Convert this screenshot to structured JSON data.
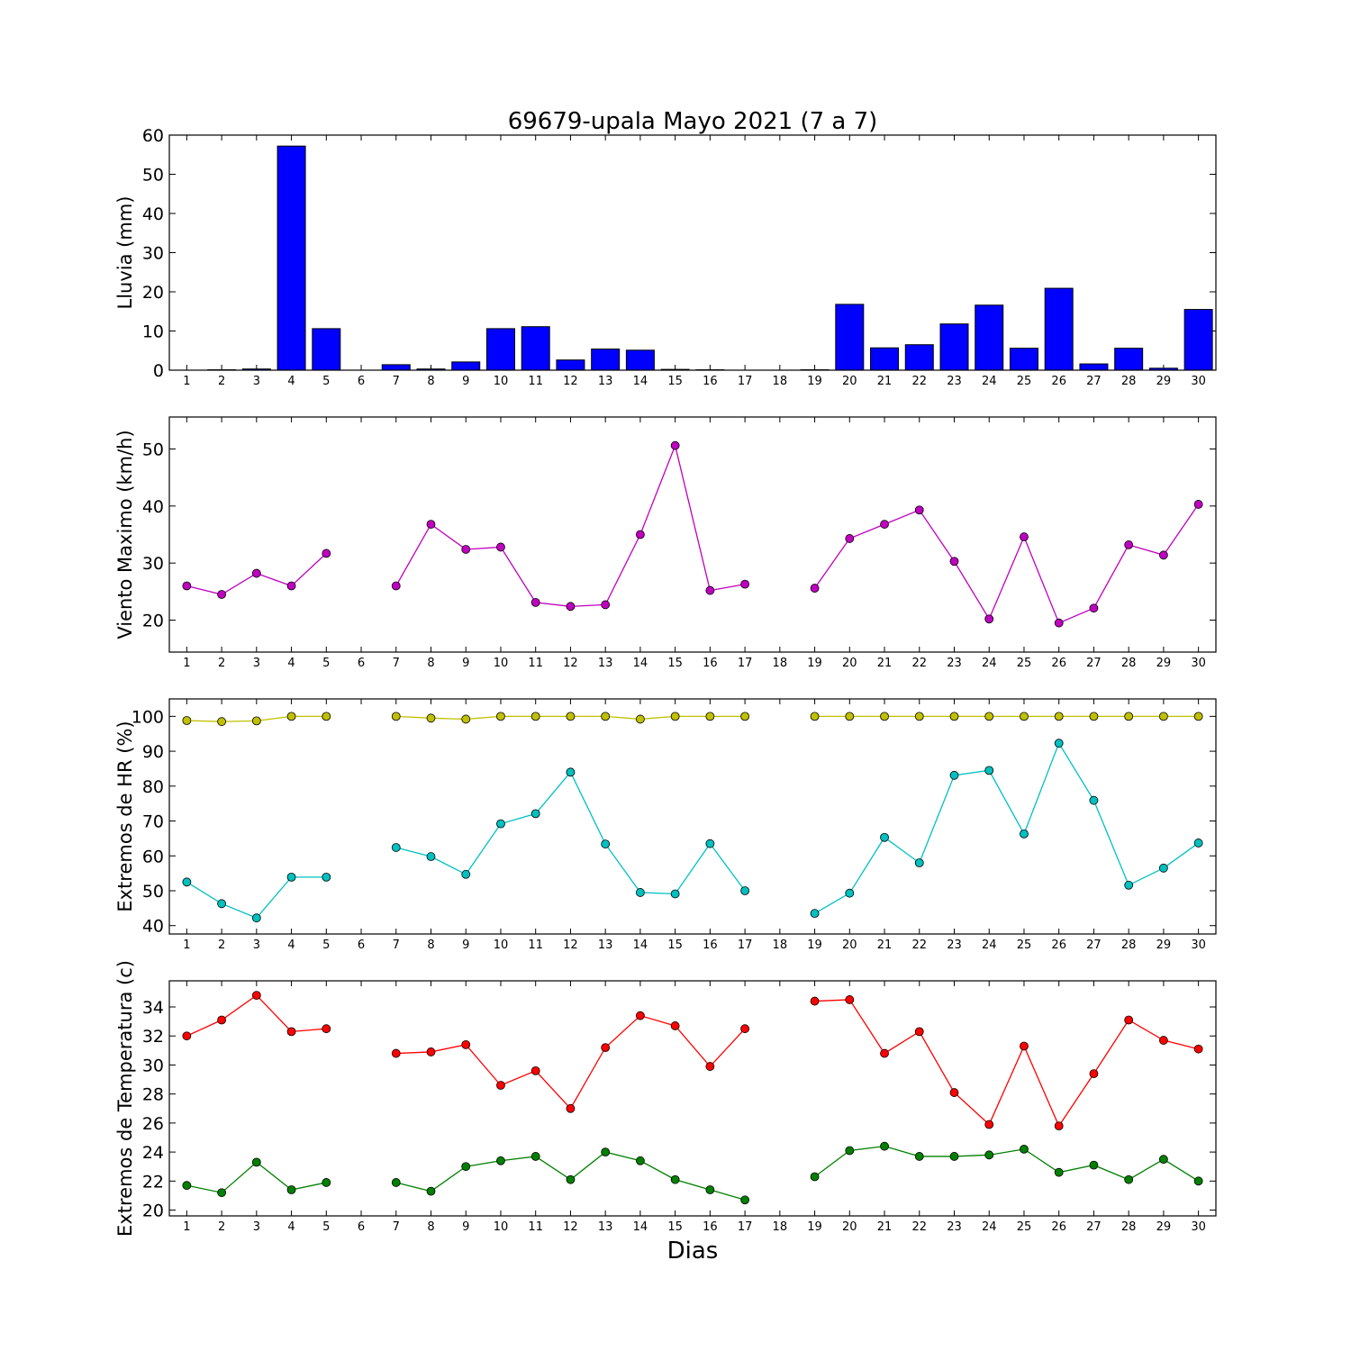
{
  "figure": {
    "title": "69679-upala Mayo 2021  (7 a 7)",
    "xlabel": "Dias"
  },
  "chart_data": [
    {
      "type": "bar",
      "ylabel": "Lluvia (mm)",
      "ylim": [
        0,
        60
      ],
      "yticks": [
        0,
        10,
        20,
        30,
        40,
        50,
        60
      ],
      "categories": [
        1,
        2,
        3,
        4,
        5,
        6,
        7,
        8,
        9,
        10,
        11,
        12,
        13,
        14,
        15,
        16,
        17,
        18,
        19,
        20,
        21,
        22,
        23,
        24,
        25,
        26,
        27,
        28,
        29,
        30
      ],
      "values": [
        0.0,
        0.1,
        0.3,
        57.2,
        10.6,
        0.0,
        1.4,
        0.3,
        2.1,
        10.6,
        11.1,
        2.6,
        5.4,
        5.1,
        0.2,
        0.1,
        0.0,
        0.0,
        0.1,
        16.8,
        5.7,
        6.5,
        11.8,
        16.6,
        5.6,
        20.9,
        1.6,
        5.6,
        0.5,
        15.5
      ],
      "colors": {
        "bar": "#0000ff"
      },
      "grid": false
    },
    {
      "type": "line",
      "ylabel": "Viento Maximo (km/h)",
      "ylim": [
        14.4,
        55.6
      ],
      "yticks": [
        20,
        30,
        40,
        50
      ],
      "x": [
        1,
        2,
        3,
        4,
        5,
        6,
        7,
        8,
        9,
        10,
        11,
        12,
        13,
        14,
        15,
        16,
        17,
        18,
        19,
        20,
        21,
        22,
        23,
        24,
        25,
        26,
        27,
        28,
        29,
        30
      ],
      "series": [
        {
          "values": [
            26.0,
            24.5,
            28.2,
            26.0,
            31.7,
            null,
            26.0,
            36.8,
            32.4,
            32.8,
            23.1,
            22.4,
            22.7,
            35.0,
            50.6,
            25.2,
            26.3,
            null,
            25.6,
            34.3,
            36.8,
            39.3,
            30.3,
            20.2,
            34.6,
            19.5,
            22.1,
            33.2,
            31.4,
            40.3
          ],
          "color": "#c000c0"
        }
      ],
      "grid": false
    },
    {
      "type": "line",
      "ylabel": "Extremos de HR (%)",
      "ylim": [
        37.6,
        105.0
      ],
      "yticks": [
        40,
        50,
        60,
        70,
        80,
        90,
        100
      ],
      "x": [
        1,
        2,
        3,
        4,
        5,
        6,
        7,
        8,
        9,
        10,
        11,
        12,
        13,
        14,
        15,
        16,
        17,
        18,
        19,
        20,
        21,
        22,
        23,
        24,
        25,
        26,
        27,
        28,
        29,
        30
      ],
      "series": [
        {
          "values": [
            98.8,
            98.5,
            98.7,
            100,
            100,
            null,
            100,
            99.5,
            99.2,
            100,
            100,
            100,
            100,
            99.2,
            100,
            100,
            100,
            null,
            100,
            100,
            100,
            100,
            100,
            100,
            100,
            100,
            100,
            100,
            100,
            100
          ],
          "color": "#c0c000"
        },
        {
          "values": [
            52.5,
            46.3,
            42.2,
            53.9,
            53.9,
            null,
            62.4,
            59.8,
            54.7,
            69.2,
            72.1,
            84.0,
            63.4,
            49.5,
            49.1,
            63.5,
            50.0,
            null,
            43.5,
            49.3,
            65.3,
            58.0,
            83.1,
            84.5,
            66.3,
            92.3,
            75.9,
            51.6,
            56.5,
            63.7
          ],
          "color": "#00c0c0"
        }
      ],
      "grid": false
    },
    {
      "type": "line",
      "ylabel": "Extremos de Temperatura (c)",
      "ylim": [
        19.6,
        35.8
      ],
      "yticks": [
        20,
        22,
        24,
        26,
        28,
        30,
        32,
        34
      ],
      "x": [
        1,
        2,
        3,
        4,
        5,
        6,
        7,
        8,
        9,
        10,
        11,
        12,
        13,
        14,
        15,
        16,
        17,
        18,
        19,
        20,
        21,
        22,
        23,
        24,
        25,
        26,
        27,
        28,
        29,
        30
      ],
      "series": [
        {
          "values": [
            32.0,
            33.1,
            34.8,
            32.3,
            32.5,
            null,
            30.8,
            30.9,
            31.4,
            28.6,
            29.6,
            27.0,
            31.2,
            33.4,
            32.7,
            29.9,
            32.5,
            null,
            34.4,
            34.5,
            30.8,
            32.3,
            28.1,
            25.9,
            31.3,
            25.8,
            29.4,
            33.1,
            31.7,
            31.1
          ],
          "color": "#ff0000"
        },
        {
          "values": [
            21.7,
            21.2,
            23.3,
            21.4,
            21.9,
            null,
            21.9,
            21.3,
            23.0,
            23.4,
            23.7,
            22.1,
            24.0,
            23.4,
            22.1,
            21.4,
            20.7,
            null,
            22.3,
            24.1,
            24.4,
            23.7,
            23.7,
            23.8,
            24.2,
            22.6,
            23.1,
            22.1,
            23.5,
            22.0
          ],
          "color": "#008000"
        }
      ],
      "grid": false
    }
  ]
}
